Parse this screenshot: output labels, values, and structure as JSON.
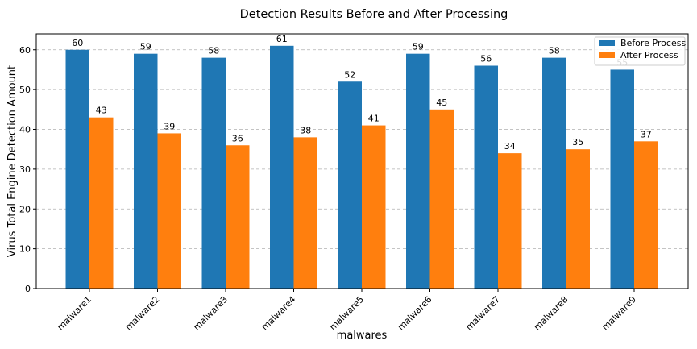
{
  "chart_data": {
    "type": "bar",
    "title": "Detection Results Before and After Processing",
    "xlabel": "malwares",
    "ylabel": "Virus Total Engine Detection Amount",
    "categories": [
      "malware1",
      "malware2",
      "malware3",
      "malware4",
      "malware5",
      "malware6",
      "malware7",
      "malware8",
      "malware9"
    ],
    "series": [
      {
        "name": "Before Process",
        "color": "#1f77b4",
        "values": [
          60,
          59,
          58,
          61,
          52,
          59,
          56,
          58,
          55
        ]
      },
      {
        "name": "After Process",
        "color": "#ff7f0e",
        "values": [
          43,
          39,
          36,
          38,
          41,
          45,
          34,
          35,
          37
        ]
      }
    ],
    "ylim": [
      0,
      64
    ],
    "yticks": [
      0,
      10,
      20,
      30,
      40,
      50,
      60
    ],
    "grid": true,
    "legend_position": "top-right"
  }
}
